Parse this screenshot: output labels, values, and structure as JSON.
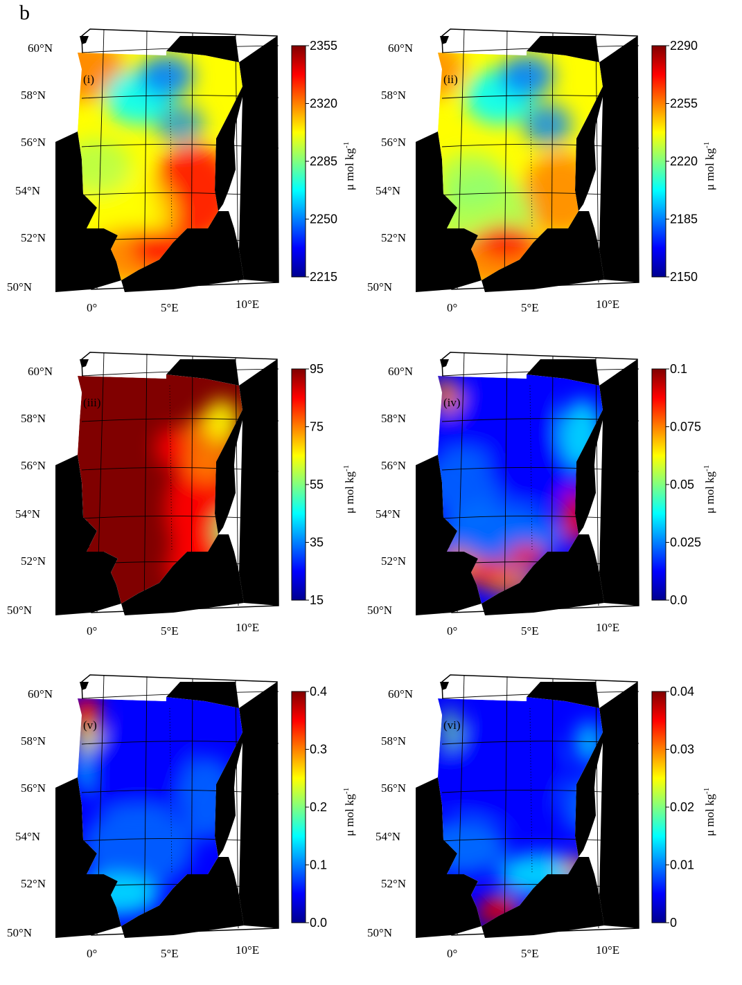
{
  "figure_label": "b",
  "lat_labels": [
    "60°N",
    "58°N",
    "56°N",
    "54°N",
    "52°N",
    "50°N"
  ],
  "lon_labels": [
    "0°",
    "5°E",
    "10°E"
  ],
  "colormap": [
    "#00008f",
    "#0000ff",
    "#0080ff",
    "#00ffff",
    "#80ff80",
    "#ffff00",
    "#ff8000",
    "#ff0000",
    "#800000"
  ],
  "land_color": "#000000",
  "panels": [
    {
      "id": "i",
      "label": "(i)",
      "cbar_ticks": [
        "2355",
        "2320",
        "2285",
        "2250",
        "2215"
      ],
      "cbar_unit": "μ mol kg",
      "cbar_unit_sup": "-1"
    },
    {
      "id": "ii",
      "label": "(ii)",
      "cbar_ticks": [
        "2290",
        "2255",
        "2220",
        "2185",
        "2150"
      ],
      "cbar_unit": "μ mol kg",
      "cbar_unit_sup": "-1"
    },
    {
      "id": "iii",
      "label": "(iii)",
      "cbar_ticks": [
        "95",
        "75",
        "55",
        "35",
        "15"
      ],
      "cbar_unit": "μ mol kg",
      "cbar_unit_sup": "-1"
    },
    {
      "id": "iv",
      "label": "(iv)",
      "cbar_ticks": [
        "0.1",
        "0.075",
        "0.05",
        "0.025",
        "0.0"
      ],
      "cbar_unit": "μ mol kg",
      "cbar_unit_sup": "-1"
    },
    {
      "id": "v",
      "label": "(v)",
      "cbar_ticks": [
        "0.4",
        "0.3",
        "0.2",
        "0.1",
        "0.0"
      ],
      "cbar_unit": "μ mol kg",
      "cbar_unit_sup": "-1"
    },
    {
      "id": "vi",
      "label": "(vi)",
      "cbar_ticks": [
        "0.04",
        "0.03",
        "0.02",
        "0.01",
        "0"
      ],
      "cbar_unit": "μ mol kg",
      "cbar_unit_sup": "-1"
    }
  ]
}
